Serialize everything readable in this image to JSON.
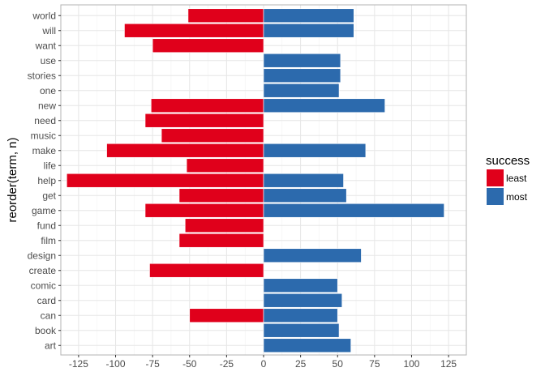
{
  "chart_data": {
    "type": "bar",
    "orientation": "horizontal",
    "title": "",
    "xlabel": "",
    "ylabel": "reorder(term, n)",
    "xlim": [
      -137,
      137
    ],
    "x_ticks": [
      -125,
      -100,
      -75,
      -50,
      -25,
      0,
      25,
      50,
      75,
      100,
      125
    ],
    "grid": true,
    "legend_position": "right",
    "categories": [
      "world",
      "will",
      "want",
      "use",
      "stories",
      "one",
      "new",
      "need",
      "music",
      "make",
      "life",
      "help",
      "get",
      "game",
      "fund",
      "film",
      "design",
      "create",
      "comic",
      "card",
      "can",
      "book",
      "art"
    ],
    "series": [
      {
        "name": "least",
        "color": "#e0001b",
        "values": [
          -51,
          -94,
          -75,
          null,
          null,
          null,
          -76,
          -80,
          -69,
          -106,
          -52,
          -133,
          -57,
          -80,
          -53,
          -57,
          null,
          -77,
          null,
          null,
          -50,
          null,
          null
        ]
      },
      {
        "name": "most",
        "color": "#2c6aad",
        "values": [
          61,
          61,
          null,
          52,
          52,
          51,
          82,
          null,
          null,
          69,
          null,
          54,
          56,
          122,
          null,
          null,
          66,
          null,
          50,
          53,
          50,
          51,
          59
        ]
      }
    ],
    "legend": {
      "title": "success",
      "entries": [
        "least",
        "most"
      ]
    }
  }
}
